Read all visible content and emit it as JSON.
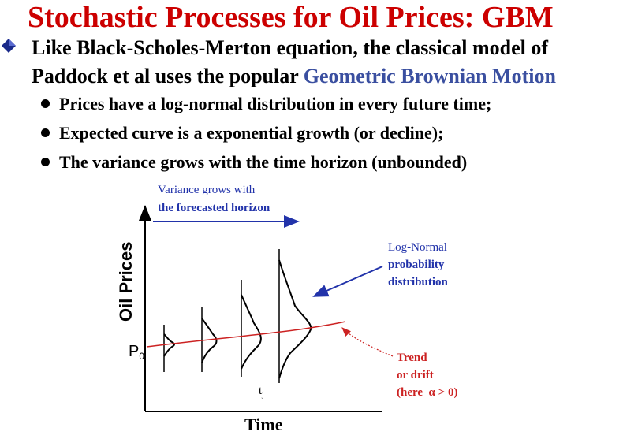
{
  "title": "Stochastic Processes for Oil Prices: GBM",
  "main_bullet": {
    "line1": "Like Black-Scholes-Merton equation, the classical model of",
    "line2_prefix": "Paddock et al uses the popular ",
    "line2_highlight": "Geometric Brownian Motion"
  },
  "sub_bullets": [
    "Prices have a log-normal distribution in every future time;",
    "Expected curve is a exponential growth (or decline);",
    "The variance grows with the time horizon (unbounded)"
  ],
  "diagram": {
    "y_axis_label": "Oil Prices",
    "x_axis_label": "Time",
    "p0_label": "P",
    "p0_sub": "0",
    "tj_label": "t",
    "tj_sub": "j",
    "variance_note": [
      "Variance grows with",
      "the forecasted horizon"
    ],
    "lognormal_note": [
      "Log-Normal",
      "probability",
      "distribution"
    ],
    "trend_note": [
      "Trend",
      "or drift",
      "(here  α > 0)"
    ],
    "colors": {
      "note_blue": "#2233aa",
      "trend_red": "#cc2222",
      "title_red": "#cc0000"
    }
  }
}
